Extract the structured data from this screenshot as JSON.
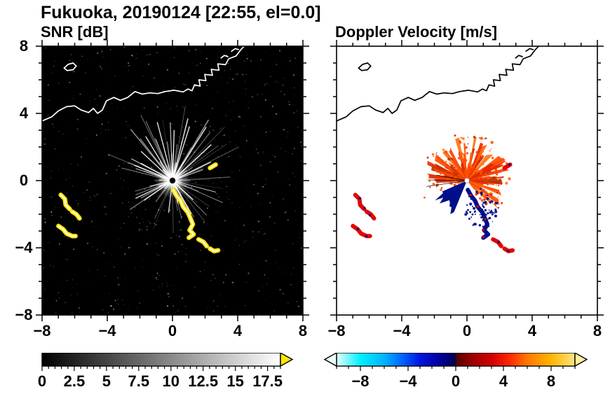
{
  "title": "Fukuoka, 20190124 [22:55, el=0.0]",
  "chart_data": [
    {
      "type": "heatmap",
      "id": "snr",
      "title": "SNR [dB]",
      "xlim": [
        -8,
        8
      ],
      "ylim": [
        -8,
        8
      ],
      "xticks": [
        -8,
        -4,
        0,
        4,
        8
      ],
      "yticks": [
        8,
        4,
        0,
        -4,
        -8
      ],
      "minor_step": 1,
      "major_step": 4,
      "background": "#000000",
      "coast_color": "#ffffff",
      "echo_color": "#ffe400",
      "echo_core_color": "#ffffff",
      "radar": {
        "center": [
          0,
          0
        ],
        "streak_count": 110,
        "streak_color": "#ffffff",
        "noise_dots": 650,
        "center_dot_color": "#000000",
        "bright_rays": [
          {
            "angle_deg": 25,
            "len": 2.6
          },
          {
            "angle_deg": 42,
            "len": 3.2
          },
          {
            "angle_deg": 57,
            "len": 3.8
          },
          {
            "angle_deg": 72,
            "len": 3.4
          },
          {
            "angle_deg": 88,
            "len": 3.0
          },
          {
            "angle_deg": 105,
            "len": 3.6
          },
          {
            "angle_deg": 122,
            "len": 3.1
          },
          {
            "angle_deg": 138,
            "len": 2.6
          },
          {
            "angle_deg": 152,
            "len": 2.2
          },
          {
            "angle_deg": 205,
            "len": 2.5
          },
          {
            "angle_deg": 214,
            "len": 2.1
          },
          {
            "angle_deg": 300,
            "len": 2.3
          },
          {
            "angle_deg": 318,
            "len": 1.7
          }
        ]
      },
      "colorbar": {
        "domain": [
          0,
          18.5
        ],
        "labels": [
          0,
          2.5,
          5,
          7.5,
          10,
          12.5,
          15,
          17.5
        ],
        "minor_step": 0.5,
        "stops": [
          [
            0,
            "#000000"
          ],
          [
            18.5,
            "#ffffff"
          ]
        ],
        "arrow_left": null,
        "arrow_right": "#ffe600"
      }
    },
    {
      "type": "heatmap",
      "id": "vel",
      "title": "Doppler Velocity [m/s]",
      "xlim": [
        -8,
        8
      ],
      "ylim": [
        -8,
        8
      ],
      "xticks": [
        -8,
        -4,
        0,
        4,
        8
      ],
      "yticks": [
        8,
        4,
        0,
        -4,
        -8
      ],
      "minor_step": 1,
      "major_step": 4,
      "background": "#ffffff",
      "coast_color": "#000000",
      "echo_pos_color": "#e10600",
      "echo_neg_color": "#000f8a",
      "center_dot_color": "#ffffff",
      "fan": {
        "center": [
          0,
          0
        ],
        "angle_start": -50,
        "angle_end": 196,
        "spike_count": 130,
        "max_len": 2.7,
        "core_radius": 0.9,
        "speckle_count": 130,
        "colors": [
          "#ff4000",
          "#ff5d00",
          "#ec2d00",
          "#ff7517",
          "#d82900",
          "#ff4e00",
          "#c23000"
        ]
      },
      "wedge": {
        "angle_start": 203,
        "angle_end": 247,
        "radius": 2.2,
        "color": "#000f8a"
      },
      "navy_speckles": {
        "cx": 0.9,
        "cy": -1.6,
        "rx": 1.05,
        "ry": 1.25,
        "count": 80,
        "color": "#000f8a"
      },
      "rays": [
        {
          "angle_deg": 170,
          "len": 1.9
        },
        {
          "angle_deg": 179,
          "len": 2.4
        },
        {
          "angle_deg": 188,
          "len": 2.5
        }
      ],
      "colorbar": {
        "domain": [
          -10,
          10
        ],
        "labels": [
          -8,
          -4,
          0,
          4,
          8
        ],
        "minor_step": 1,
        "stops": [
          [
            -10,
            "#e8ffff"
          ],
          [
            -8,
            "#00f0ff"
          ],
          [
            -6,
            "#00b4ff"
          ],
          [
            -4.5,
            "#0064ff"
          ],
          [
            -3,
            "#0014e1"
          ],
          [
            -1.2,
            "#000096"
          ],
          [
            -0.05,
            "#000050"
          ],
          [
            0.05,
            "#500000"
          ],
          [
            1.2,
            "#960000"
          ],
          [
            3,
            "#d20000"
          ],
          [
            4.5,
            "#ff2800"
          ],
          [
            6,
            "#ff7800"
          ],
          [
            8,
            "#ffb400"
          ],
          [
            10,
            "#ffe67d"
          ]
        ],
        "arrow_left": "#eefcff",
        "arrow_right": "#ffef9e"
      }
    }
  ],
  "map_outline": {
    "polylines": [
      [
        [
          -8.0,
          3.55
        ],
        [
          -7.4,
          3.8
        ],
        [
          -7.0,
          4.15
        ],
        [
          -6.5,
          4.4
        ],
        [
          -6.0,
          4.45
        ],
        [
          -5.6,
          4.2
        ],
        [
          -5.15,
          4.05
        ],
        [
          -4.85,
          4.3
        ],
        [
          -4.6,
          4.0
        ],
        [
          -4.3,
          4.2
        ],
        [
          -4.05,
          4.75
        ],
        [
          -3.6,
          4.95
        ],
        [
          -3.2,
          4.78
        ],
        [
          -2.75,
          4.95
        ],
        [
          -2.3,
          5.3
        ],
        [
          -1.85,
          5.15
        ],
        [
          -1.4,
          5.22
        ],
        [
          -0.9,
          5.18
        ],
        [
          -0.45,
          5.3
        ],
        [
          0.1,
          5.38
        ],
        [
          0.65,
          5.28
        ],
        [
          0.95,
          5.45
        ],
        [
          1.2,
          5.35
        ],
        [
          1.35,
          5.7
        ],
        [
          1.7,
          5.62
        ],
        [
          1.62,
          6.0
        ],
        [
          2.05,
          5.95
        ],
        [
          1.98,
          6.32
        ],
        [
          2.45,
          6.27
        ],
        [
          2.38,
          6.62
        ],
        [
          2.85,
          6.57
        ],
        [
          2.78,
          6.95
        ],
        [
          3.25,
          6.9
        ],
        [
          3.45,
          7.25
        ],
        [
          3.9,
          7.42
        ],
        [
          4.2,
          7.8
        ],
        [
          4.45,
          8.05
        ]
      ],
      [
        [
          -6.65,
          6.7
        ],
        [
          -6.4,
          6.92
        ],
        [
          -6.1,
          7.0
        ],
        [
          -5.9,
          6.82
        ],
        [
          -6.1,
          6.6
        ],
        [
          -6.45,
          6.55
        ],
        [
          -6.65,
          6.7
        ]
      ],
      [
        [
          2.98,
          7.3
        ],
        [
          3.18,
          7.45
        ],
        [
          3.4,
          7.38
        ]
      ],
      [
        [
          3.62,
          7.7
        ],
        [
          3.85,
          7.86
        ],
        [
          4.05,
          7.8
        ]
      ]
    ]
  },
  "echo_chains": [
    {
      "name": "west-a",
      "dominant": "pos",
      "points": [
        [
          -6.85,
          -0.85
        ],
        [
          -6.6,
          -1.1
        ],
        [
          -6.55,
          -1.45
        ],
        [
          -6.3,
          -1.7
        ]
      ]
    },
    {
      "name": "west-b",
      "dominant": "pos",
      "points": [
        [
          -6.15,
          -1.85
        ],
        [
          -5.9,
          -2.0
        ],
        [
          -5.7,
          -2.25
        ]
      ]
    },
    {
      "name": "west-c",
      "dominant": "pos",
      "points": [
        [
          -7.0,
          -2.7
        ],
        [
          -6.7,
          -2.9
        ],
        [
          -6.5,
          -3.15
        ],
        [
          -6.15,
          -3.3
        ],
        [
          -5.95,
          -3.3
        ]
      ]
    },
    {
      "name": "central",
      "dominant": "neg",
      "points": [
        [
          0.05,
          -0.55
        ],
        [
          0.25,
          -0.9
        ],
        [
          0.5,
          -1.2
        ],
        [
          0.65,
          -1.55
        ],
        [
          0.95,
          -1.9
        ],
        [
          1.1,
          -2.25
        ],
        [
          1.25,
          -2.6
        ],
        [
          1.05,
          -2.95
        ],
        [
          1.3,
          -3.2
        ],
        [
          1.0,
          -3.4
        ]
      ]
    },
    {
      "name": "south-a",
      "dominant": "pos",
      "points": [
        [
          1.6,
          -3.5
        ],
        [
          1.9,
          -3.65
        ],
        [
          2.1,
          -3.9
        ]
      ]
    },
    {
      "name": "south-b",
      "dominant": "pos",
      "points": [
        [
          2.3,
          -4.05
        ],
        [
          2.55,
          -4.2
        ],
        [
          2.8,
          -4.15
        ]
      ]
    },
    {
      "name": "northeast-dash",
      "dominant": "pos",
      "points": [
        [
          2.3,
          0.75
        ],
        [
          2.65,
          0.95
        ]
      ]
    }
  ]
}
